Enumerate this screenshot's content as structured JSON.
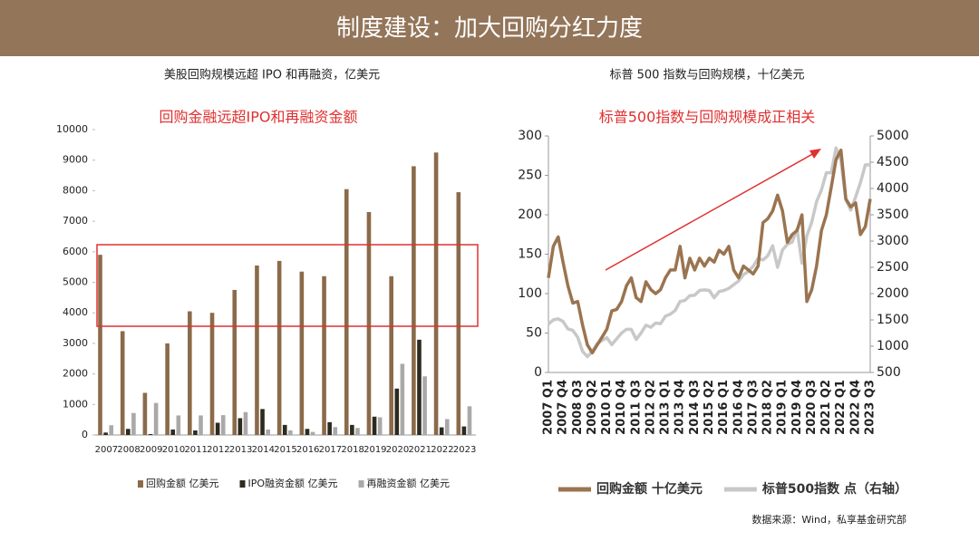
{
  "title": "制度建设：加大回购分红力度",
  "source": "数据来源：Wind，私享基金研究部",
  "chart_data": [
    {
      "type": "bar",
      "title": "美股回购规模远超 IPO 和再融资，亿美元",
      "annotation": "回购金融远超IPO和再融资金额",
      "categories": [
        "2007",
        "2008",
        "2009",
        "2010",
        "2011",
        "2012",
        "2013",
        "2014",
        "2015",
        "2016",
        "2017",
        "2018",
        "2019",
        "2020",
        "2021",
        "2022",
        "2023"
      ],
      "series": [
        {
          "name": "回购金额 亿美元",
          "color": "#8b6a4a",
          "values": [
            5900,
            3400,
            1380,
            3000,
            4050,
            4000,
            4750,
            5550,
            5700,
            5350,
            5200,
            8050,
            7300,
            5200,
            8800,
            9250,
            7950
          ]
        },
        {
          "name": "IPO融资金额 亿美元",
          "color": "#2e2a1e",
          "values": [
            80,
            200,
            30,
            180,
            150,
            400,
            550,
            850,
            330,
            200,
            420,
            330,
            600,
            1520,
            3120,
            250,
            280
          ]
        },
        {
          "name": "再融资金额 亿美元",
          "color": "#a9a9a9",
          "values": [
            320,
            720,
            1050,
            640,
            640,
            650,
            750,
            180,
            150,
            100,
            260,
            230,
            580,
            2330,
            1920,
            520,
            940
          ]
        }
      ],
      "ylim": [
        0,
        10000
      ],
      "yticks": [
        0,
        1000,
        2000,
        3000,
        4000,
        5000,
        6000,
        7000,
        8000,
        9000,
        10000
      ]
    },
    {
      "type": "line",
      "title": "标普 500 指数与回购规模，十亿美元",
      "annotation": "标普500指数与回购规模成正相关",
      "categories": [
        "2007 Q1",
        null,
        null,
        "2007 Q4",
        null,
        null,
        "2008 Q3",
        null,
        null,
        "2009 Q2",
        null,
        null,
        "2010 Q1",
        null,
        null,
        "2010 Q4",
        null,
        null,
        "2011 Q3",
        null,
        null,
        "2012 Q2",
        null,
        null,
        "2013 Q1",
        null,
        null,
        "2013 Q4",
        null,
        null,
        "2014 Q3",
        null,
        null,
        "2015 Q2",
        null,
        null,
        "2016 Q1",
        null,
        null,
        "2016 Q4",
        null,
        null,
        "2017 Q3",
        null,
        null,
        "2018 Q2",
        null,
        null,
        "2019 Q1",
        null,
        null,
        "2019 Q4",
        null,
        null,
        "2020 Q3",
        null,
        null,
        "2021 Q2",
        null,
        null,
        "2022 Q1",
        null,
        null,
        "2022 Q4",
        null,
        null,
        "2023 Q3"
      ],
      "series": [
        {
          "name": "回购金额 十亿美元",
          "color": "#9a7450",
          "values": [
            120,
            160,
            172,
            140,
            110,
            88,
            90,
            60,
            35,
            25,
            35,
            45,
            55,
            78,
            80,
            90,
            110,
            120,
            95,
            90,
            115,
            105,
            100,
            105,
            120,
            130,
            130,
            160,
            120,
            145,
            130,
            145,
            135,
            145,
            140,
            155,
            150,
            160,
            130,
            120,
            135,
            130,
            125,
            135,
            190,
            195,
            205,
            225,
            205,
            165,
            175,
            180,
            200,
            90,
            105,
            135,
            180,
            200,
            235,
            270,
            282,
            220,
            210,
            215,
            175,
            185,
            220
          ]
        },
        {
          "name": "标普500指数 点（右轴）",
          "color": "#c8c8c8",
          "axis": "y2",
          "values": [
            1420,
            1500,
            1520,
            1470,
            1330,
            1300,
            1170,
            900,
            800,
            900,
            1050,
            1110,
            1160,
            1030,
            1140,
            1250,
            1320,
            1320,
            1130,
            1250,
            1400,
            1360,
            1440,
            1430,
            1570,
            1610,
            1680,
            1850,
            1870,
            1960,
            1970,
            2060,
            2070,
            2060,
            1920,
            2040,
            2060,
            2100,
            2170,
            2240,
            2360,
            2420,
            2520,
            2670,
            2640,
            2720,
            2910,
            2500,
            2830,
            2940,
            2980,
            3230,
            2580,
            3100,
            3360,
            3750,
            3970,
            4300,
            4300,
            4770,
            4530,
            3790,
            3590,
            3840,
            4110,
            4450,
            4450
          ]
        }
      ],
      "ylim": [
        0,
        300
      ],
      "yticks": [
        0,
        50,
        100,
        150,
        200,
        250,
        300
      ],
      "y2lim": [
        500,
        5000
      ],
      "y2ticks": [
        500,
        1000,
        1500,
        2000,
        2500,
        3000,
        3500,
        4000,
        4500,
        5000
      ]
    }
  ]
}
